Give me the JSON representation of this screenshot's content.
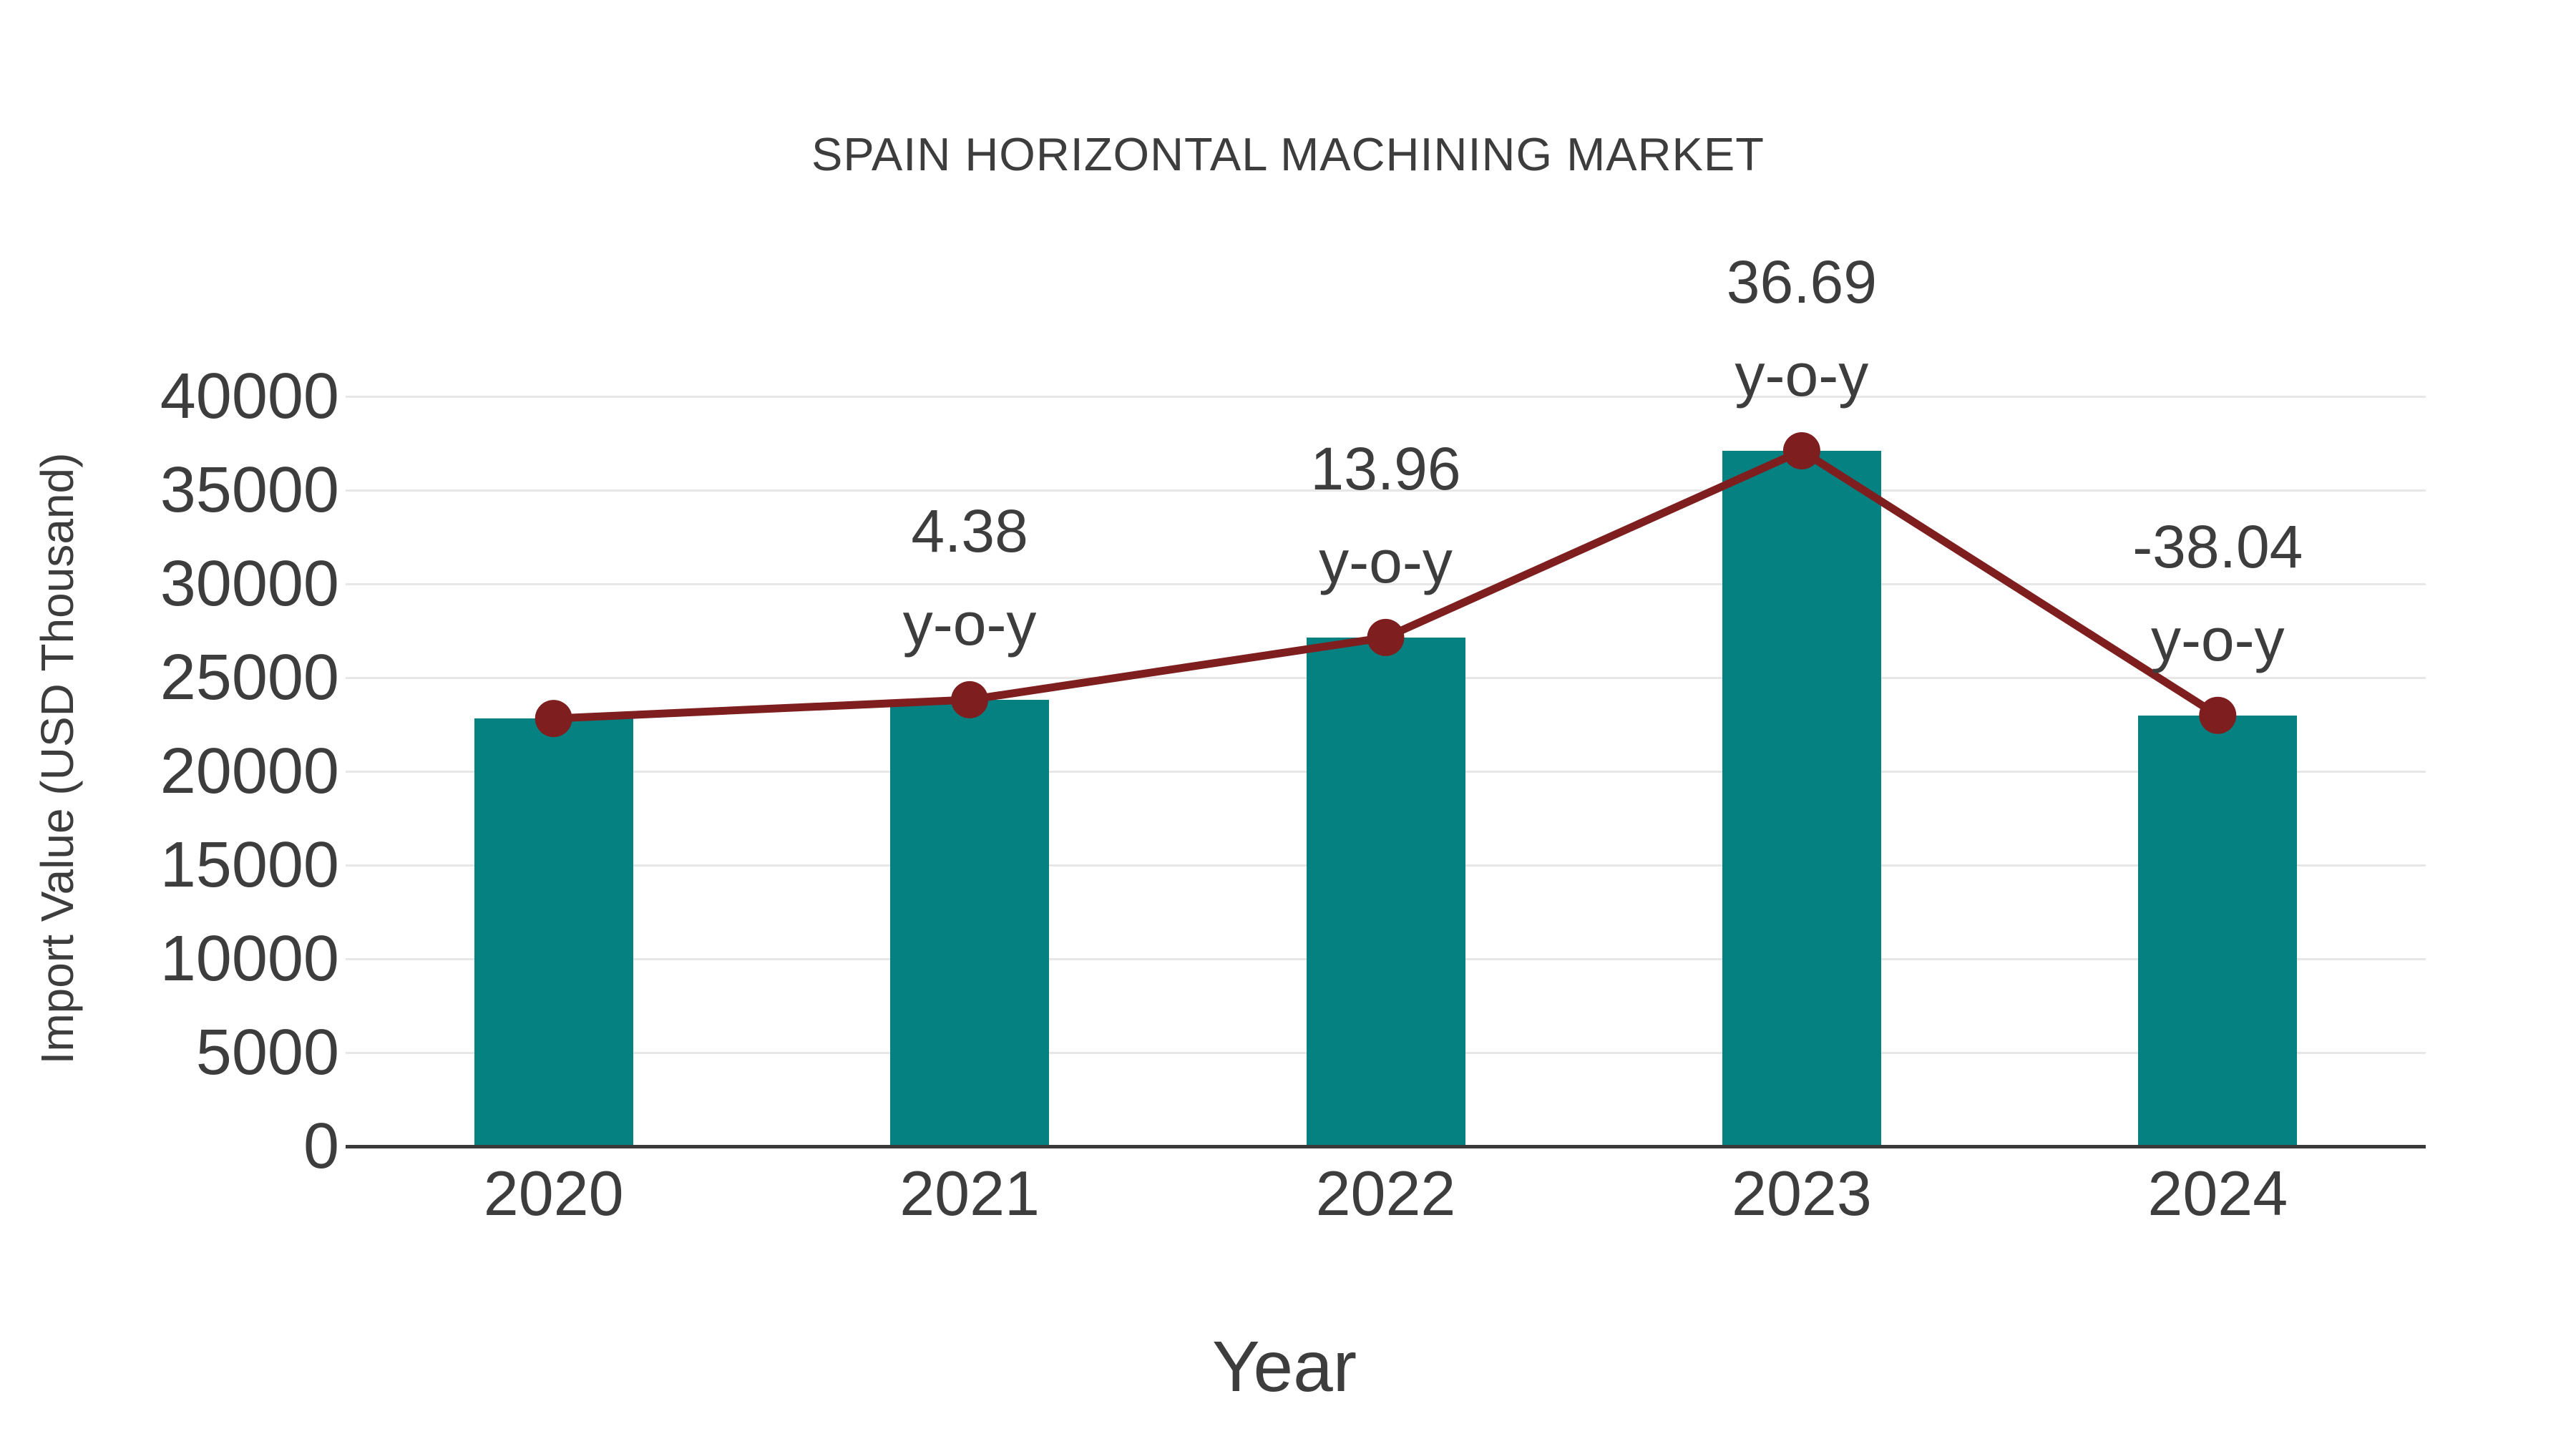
{
  "chart_data": {
    "type": "bar",
    "title": "SPAIN HORIZONTAL MACHINING MARKET",
    "xlabel": "Year",
    "ylabel": "Import Value (USD Thousand)",
    "categories": [
      "2020",
      "2021",
      "2022",
      "2023",
      "2024"
    ],
    "series": [
      {
        "name": "Import Value (USD Thousand)",
        "type": "bar",
        "values": [
          22820,
          23820,
          27140,
          37100,
          22990
        ]
      },
      {
        "name": "y-o-y change (%)",
        "type": "line",
        "values": [
          22820,
          23820,
          27140,
          37100,
          22990
        ],
        "point_labels": [
          "",
          "4.38",
          "13.96",
          "36.69",
          "-38.04"
        ],
        "point_label_suffix": "y-o-y"
      }
    ],
    "ylim": [
      0,
      40000
    ],
    "yticks": [
      0,
      5000,
      10000,
      15000,
      20000,
      25000,
      30000,
      35000,
      40000
    ],
    "grid": true,
    "legend_position": "none",
    "colors": {
      "bar": "#068181",
      "line": "#7e1e1e",
      "marker": "#7e1e1e",
      "text": "#3d3d3d",
      "grid": "#e7e7e7",
      "axis": "#3a3a3a",
      "background": "#ffffff"
    }
  }
}
